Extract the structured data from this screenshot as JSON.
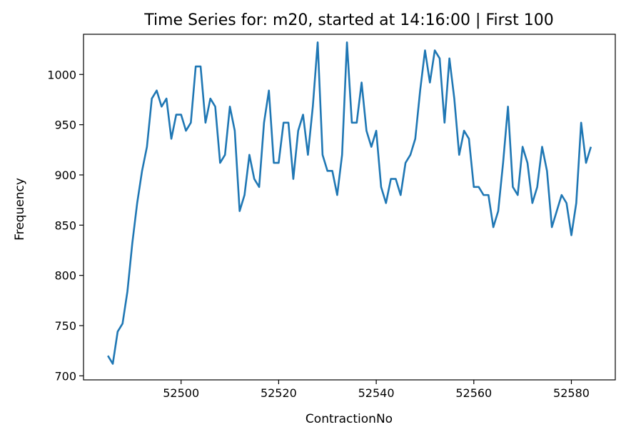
{
  "chart_data": {
    "type": "line",
    "title": "Time Series for: m20, started at 14:16:00 | First 100",
    "xlabel": "ContractionNo",
    "ylabel": "Frequency",
    "xlim": [
      52480,
      52589
    ],
    "ylim": [
      696,
      1040
    ],
    "xticks": [
      52500,
      52520,
      52540,
      52560,
      52580
    ],
    "yticks": [
      700,
      750,
      800,
      850,
      900,
      950,
      1000
    ],
    "grid": false,
    "color": "#1f77b4",
    "series": [
      {
        "x": [
          52485,
          52486,
          52487,
          52488,
          52489,
          52490,
          52491,
          52492,
          52493,
          52494,
          52495,
          52496,
          52497,
          52498,
          52499,
          52500,
          52501,
          52502,
          52503,
          52504,
          52505,
          52506,
          52507,
          52508,
          52509,
          52510,
          52511,
          52512,
          52513,
          52514,
          52515,
          52516,
          52517,
          52518,
          52519,
          52520,
          52521,
          52522,
          52523,
          52524,
          52525,
          52526,
          52527,
          52528,
          52529,
          52530,
          52531,
          52532,
          52533,
          52534,
          52535,
          52536,
          52537,
          52538,
          52539,
          52540,
          52541,
          52542,
          52543,
          52544,
          52545,
          52546,
          52547,
          52548,
          52549,
          52550,
          52551,
          52552,
          52553,
          52554,
          52555,
          52556,
          52557,
          52558,
          52559,
          52560,
          52561,
          52562,
          52563,
          52564,
          52565,
          52566,
          52567,
          52568,
          52569,
          52570,
          52571,
          52572,
          52573,
          52574,
          52575,
          52576,
          52577,
          52578,
          52579,
          52580,
          52581,
          52582,
          52583,
          52584
        ],
        "y": [
          720,
          712,
          744,
          752,
          784,
          832,
          872,
          904,
          928,
          976,
          984,
          968,
          976,
          936,
          960,
          960,
          944,
          952,
          1008,
          1008,
          952,
          976,
          968,
          912,
          920,
          968,
          944,
          864,
          880,
          920,
          896,
          888,
          952,
          984,
          912,
          912,
          952,
          952,
          896,
          944,
          960,
          920,
          968,
          1032,
          920,
          904,
          904,
          880,
          920,
          1032,
          952,
          952,
          992,
          944,
          928,
          944,
          888,
          872,
          896,
          896,
          880,
          912,
          920,
          936,
          984,
          1024,
          992,
          1024,
          1016,
          952,
          1016,
          976,
          920,
          944,
          936,
          888,
          888,
          880,
          880,
          848,
          864,
          912,
          968,
          888,
          880,
          928,
          912,
          872,
          888,
          928,
          904,
          848,
          864,
          880,
          872,
          840,
          872,
          952,
          912,
          928
        ]
      }
    ]
  }
}
